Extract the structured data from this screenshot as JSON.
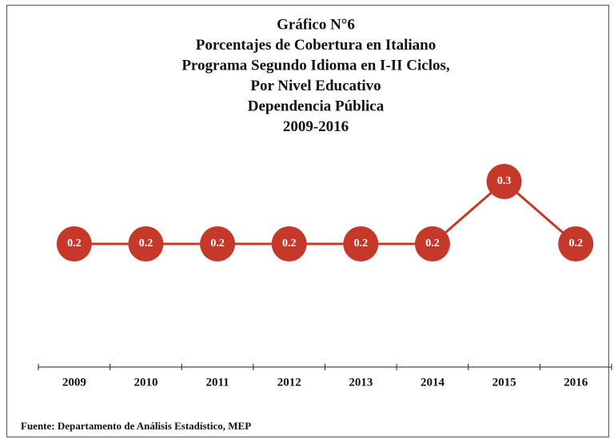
{
  "chart_data": {
    "type": "line",
    "title": [
      "Gráfico N°6",
      "Porcentajes de Cobertura en Italiano",
      "Programa Segundo Idioma en I-II Ciclos,",
      "Por Nivel Educativo",
      "Dependencia Pública",
      "2009-2016"
    ],
    "categories": [
      "2009",
      "2010",
      "2011",
      "2012",
      "2013",
      "2014",
      "2015",
      "2016"
    ],
    "values": [
      0.2,
      0.2,
      0.2,
      0.2,
      0.2,
      0.2,
      0.3,
      0.2
    ],
    "color": "#c5392a",
    "source": "Fuente: Departamento de Análisis Estadístico, MEP"
  }
}
